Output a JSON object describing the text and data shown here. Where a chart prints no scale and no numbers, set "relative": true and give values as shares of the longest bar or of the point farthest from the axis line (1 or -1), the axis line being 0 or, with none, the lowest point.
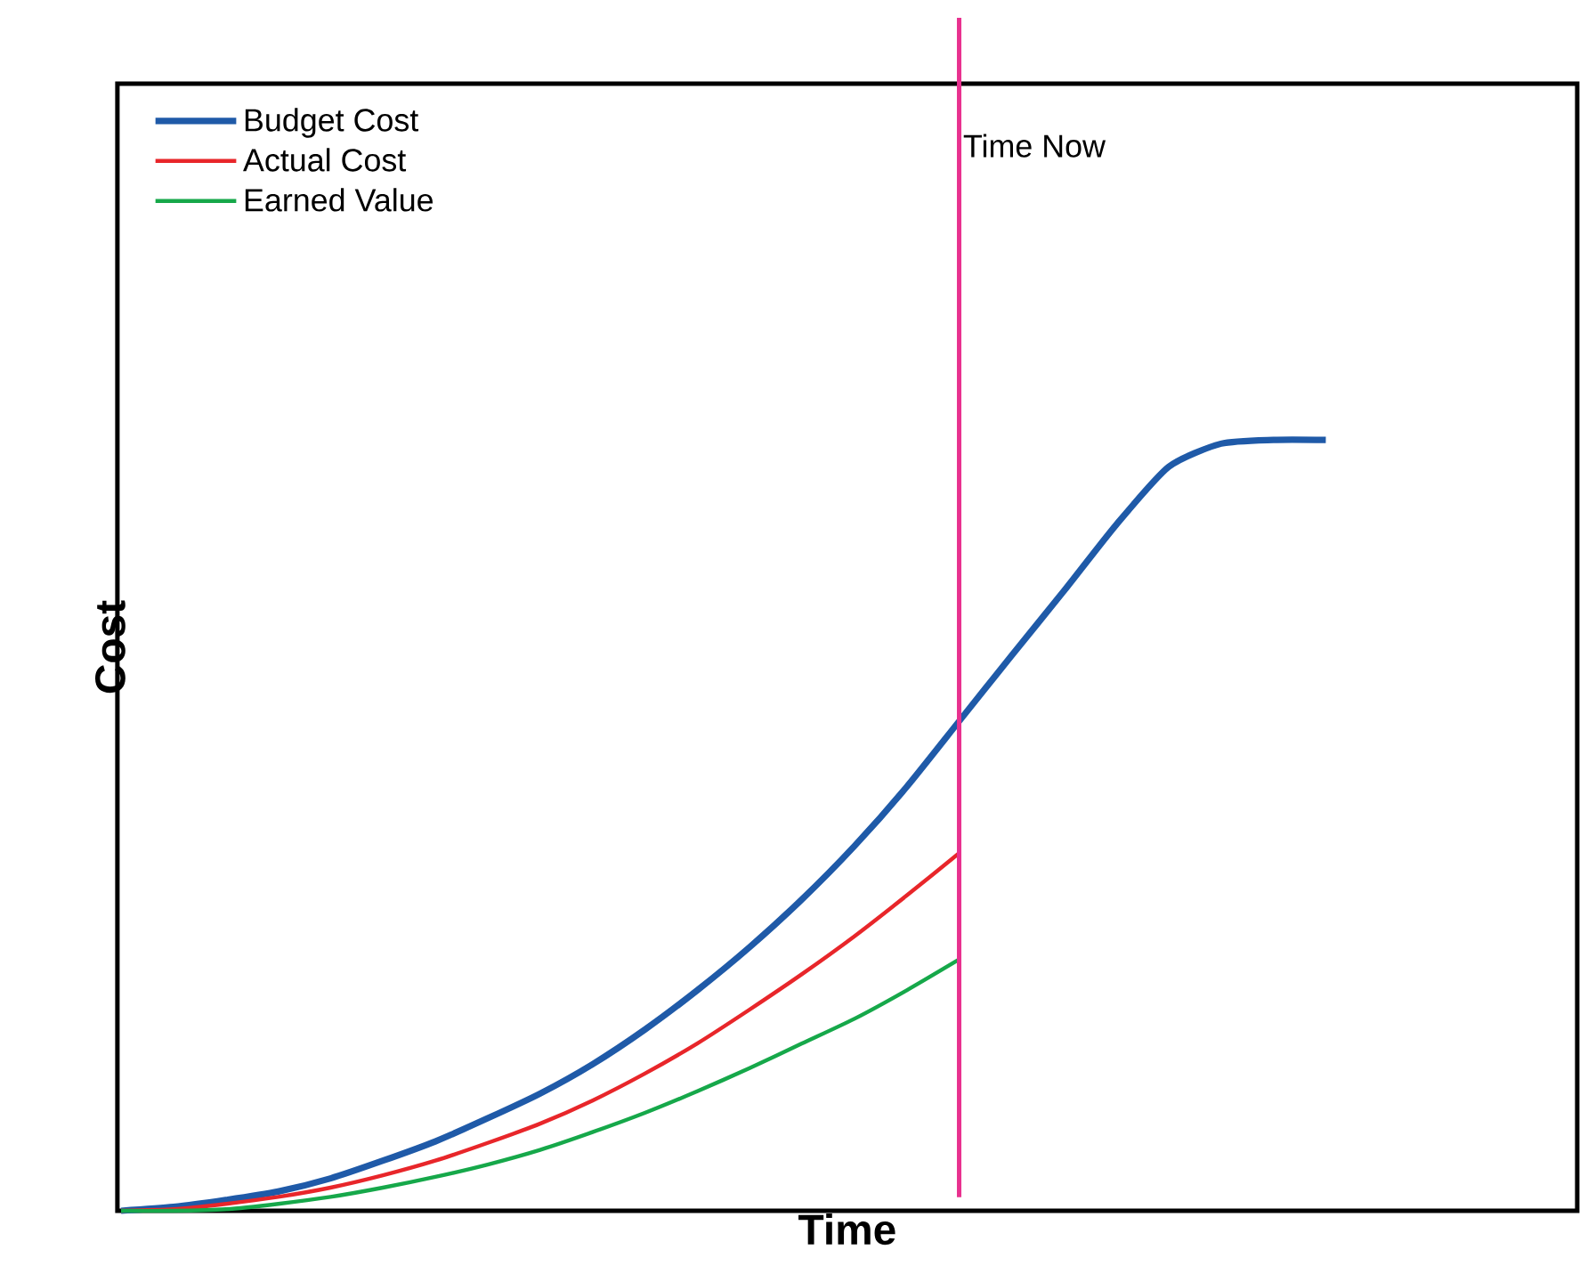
{
  "chart_data": {
    "type": "line",
    "xlabel": "Time",
    "ylabel": "Cost",
    "relative": true,
    "legend": "top left",
    "marker": "none",
    "line_style": "solid",
    "categories": [
      null,
      null,
      null,
      null,
      null,
      null,
      null,
      null,
      null,
      null,
      null,
      null,
      null,
      null,
      null,
      null,
      null,
      null,
      null,
      null,
      null,
      null,
      null,
      null
    ],
    "series": [
      {
        "name": "Budget Cost",
        "color": "#1f5aa8",
        "values": [
          0,
          0.005,
          0.014,
          0.025,
          0.042,
          0.065,
          0.09,
          0.12,
          0.152,
          0.19,
          0.235,
          0.286,
          0.342,
          0.404,
          0.473,
          0.55,
          0.635,
          0.72,
          0.804,
          0.89,
          0.965,
          0.995,
          1,
          1
        ]
      },
      {
        "name": "Actual Cost",
        "color": "#e8262a",
        "values": [
          0,
          0.002,
          0.009,
          0.018,
          0.03,
          0.046,
          0.065,
          0.088,
          0.113,
          0.143,
          0.178,
          0.217,
          0.261,
          0.307,
          0.356,
          0.409,
          0.464,
          null,
          null,
          null,
          null,
          null,
          null,
          null
        ]
      },
      {
        "name": "Earned Value",
        "color": "#16a84a",
        "values": [
          0,
          0,
          0.002,
          0.009,
          0.018,
          0.03,
          0.044,
          0.06,
          0.079,
          0.102,
          0.127,
          0.155,
          0.185,
          0.217,
          0.249,
          0.286,
          0.326,
          null,
          null,
          null,
          null,
          null,
          null,
          null
        ]
      }
    ],
    "annotations": [
      "Time Now"
    ]
  }
}
